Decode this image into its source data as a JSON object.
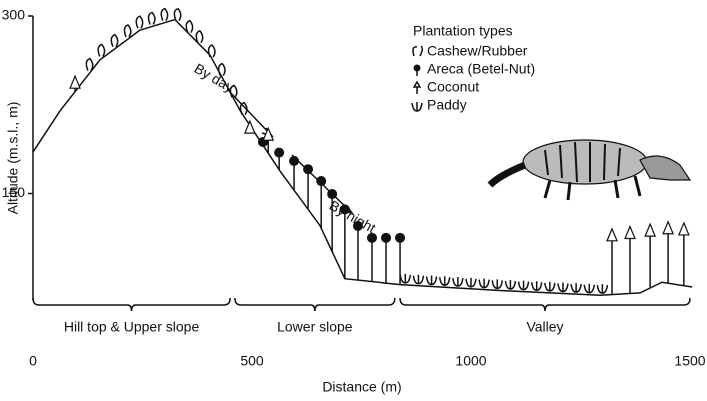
{
  "chart_data": {
    "type": "line",
    "xlabel": "Distance (m)",
    "ylabel": "Altitude (m.s.l., m)",
    "xlim": [
      0,
      1500
    ],
    "ylim": [
      60,
      300
    ],
    "xticks": [
      0,
      500,
      1000,
      1500
    ],
    "yticks": [
      150,
      300
    ],
    "x": [
      0,
      62,
      153,
      244,
      324,
      404,
      473,
      564,
      655,
      712,
      838,
      1066,
      1295,
      1386,
      1436,
      1505
    ],
    "values": [
      185,
      220,
      263,
      288,
      297,
      267,
      220,
      169,
      123,
      78,
      73,
      68,
      64,
      66,
      75,
      71
    ],
    "legend_title": "Plantation types",
    "plantations": [
      {
        "name": "Cashew/Rubber",
        "x": [
          130,
          157,
          187,
          217,
          244,
          272,
          301,
          331,
          358,
          381,
          409,
          432,
          459,
          482
        ]
      },
      {
        "name": "Areca (Betel-Nut)",
        "x": [
          525,
          562,
          596,
          628,
          658,
          683,
          712,
          742,
          774,
          806,
          838
        ],
        "values": [
          191,
          182,
          175,
          168,
          158,
          147,
          134,
          120,
          110,
          110,
          110
        ]
      },
      {
        "name": "Coconut",
        "x": [
          96,
          495,
          537,
          1322,
          1363,
          1409,
          1450,
          1486
        ],
        "values": [
          239,
          201,
          195,
          110,
          112,
          114,
          116,
          115
        ]
      },
      {
        "name": "Paddy",
        "x": [
          850,
          880,
          910,
          940,
          970,
          1000,
          1030,
          1060,
          1090,
          1120,
          1150,
          1180,
          1210,
          1240,
          1270,
          1300
        ]
      }
    ],
    "annotations": [
      "By day",
      "By night"
    ],
    "zones": [
      {
        "label": "Hill top & Upper slope",
        "x": [
          0,
          450
        ]
      },
      {
        "label": "Lower slope",
        "x": [
          461,
          826
        ]
      },
      {
        "label": "Valley",
        "x": [
          838,
          1500
        ]
      }
    ]
  }
}
